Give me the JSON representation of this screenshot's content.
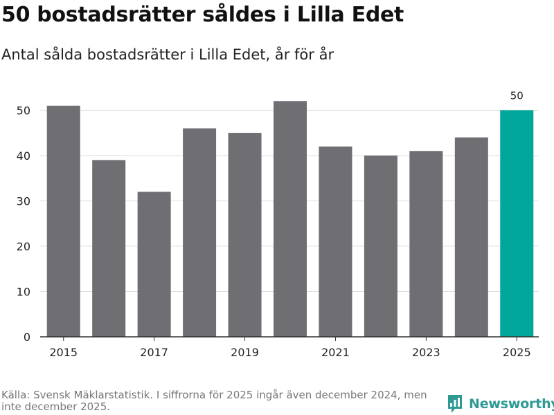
{
  "header": {
    "title": "50 bostadsrätter såldes i Lilla Edet",
    "subtitle": "Antal sålda bostadsrätter i Lilla Edet, år för år"
  },
  "chart_data": {
    "type": "bar",
    "categories": [
      "2015",
      "2016",
      "2017",
      "2018",
      "2019",
      "2020",
      "2021",
      "2022",
      "2023",
      "2024",
      "2025"
    ],
    "values": [
      51,
      39,
      32,
      46,
      45,
      52,
      42,
      40,
      41,
      44,
      50
    ],
    "x_tick_labels": [
      "2015",
      "2017",
      "2019",
      "2021",
      "2023",
      "2025"
    ],
    "y_tick_labels": [
      "0",
      "10",
      "20",
      "30",
      "40",
      "50"
    ],
    "ylim": [
      0,
      56
    ],
    "grid": true,
    "highlight_index": 10,
    "highlight_label": "50",
    "bar_color": "#6e6e73",
    "highlight_color": "#00a699",
    "grid_color": "#dddddd",
    "axis_color": "#333333"
  },
  "footer": {
    "source": "Källa: Svensk Mäklarstatistik. I siffrorna för 2025 ingår även december 2024, men inte december 2025."
  },
  "brand": {
    "name": "Newsworthy",
    "color": "#2e9a93"
  }
}
